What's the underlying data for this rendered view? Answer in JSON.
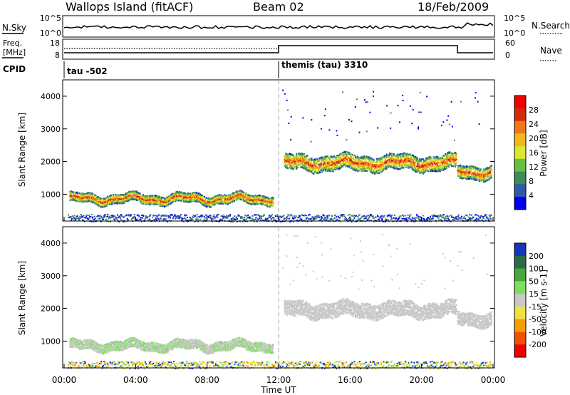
{
  "header": {
    "station": "Wallops Island (fitACF)",
    "beam": "Beam 02",
    "date": "18/Feb/2009"
  },
  "noise_panel": {
    "left_label": "N.Sky",
    "right_label": "N.Search",
    "left_ticks": [
      "10^5",
      "10^0"
    ],
    "right_ticks": [
      "10^5",
      "10^0"
    ]
  },
  "freq_panel": {
    "left_label_1": "Freq.",
    "left_label_2": "[MHz]",
    "right_label": "Nave",
    "left_ticks": [
      "18",
      "8"
    ],
    "right_ticks": [
      "60",
      "0"
    ],
    "switch_time_ut": "12:00"
  },
  "cpid_panel": {
    "label": "CPID",
    "modes": [
      {
        "name": "tau -502",
        "start_ut": "00:00"
      },
      {
        "name": "themis (tau) 3310",
        "start_ut": "12:00"
      }
    ]
  },
  "power_panel": {
    "ylabel": "Slant Range [km]",
    "yticks": [
      "4000",
      "3000",
      "2000",
      "1000"
    ],
    "colorbar_label": "Power [dB]",
    "colorbar_ticks": [
      "28",
      "24",
      "20",
      "16",
      "12",
      "8",
      "4"
    ],
    "colors": [
      "#0000ee",
      "#2e58a8",
      "#3e8a5a",
      "#66c040",
      "#d8e830",
      "#f2b818",
      "#f07818",
      "#d22a0a",
      "#f00000"
    ]
  },
  "velocity_panel": {
    "ylabel": "Slant Range [km]",
    "yticks": [
      "4000",
      "3000",
      "2000",
      "1000"
    ],
    "colorbar_label": "Velocity [m s-1]",
    "colorbar_ticks": [
      "200",
      "100",
      "50",
      "15",
      "-15",
      "-50",
      "-100",
      "-200"
    ],
    "colors": [
      "#1636b8",
      "#2a6a48",
      "#44a83a",
      "#7ee05a",
      "#c8c8c8",
      "#f0e040",
      "#f5a000",
      "#f05000",
      "#ee0000"
    ]
  },
  "x_axis": {
    "ticks": [
      "00:00",
      "04:00",
      "08:00",
      "12:00",
      "16:00",
      "20:00",
      "00:00"
    ],
    "label": "Time UT"
  },
  "chart_data": {
    "type": "heatmap",
    "x_range_hours": [
      0,
      24
    ],
    "y_range_km": [
      180,
      4500
    ],
    "power_regions": [
      {
        "t_start_h": 0.3,
        "t_end_h": 11.7,
        "range_center_km": 880,
        "range_halfwidth_km": 140,
        "peak_db": 22
      },
      {
        "t_start_h": 12.3,
        "t_end_h": 21.9,
        "range_center_km": 1980,
        "range_halfwidth_km": 230,
        "peak_db": 24
      },
      {
        "t_start_h": 22.0,
        "t_end_h": 23.9,
        "range_center_km": 1700,
        "range_halfwidth_km": 200,
        "peak_db": 18
      }
    ],
    "velocity_regions": [
      {
        "t_start_h": 0.3,
        "t_end_h": 11.7,
        "range_center_km": 880,
        "velocity_m_s": 0
      },
      {
        "t_start_h": 12.3,
        "t_end_h": 21.9,
        "range_center_km": 1980,
        "velocity_m_s": 0
      },
      {
        "t_start_h": 22.0,
        "t_end_h": 23.9,
        "range_center_km": 1700,
        "velocity_m_s": 0
      }
    ],
    "ground_scatter_band_km": [
      180,
      400
    ]
  }
}
